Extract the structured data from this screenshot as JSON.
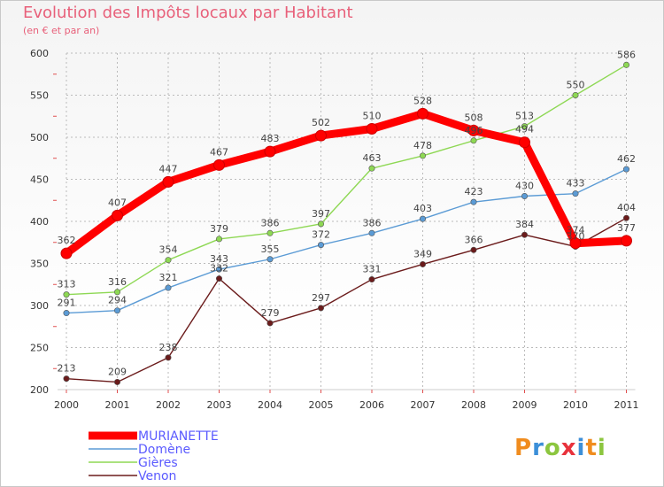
{
  "chart_data": {
    "type": "line",
    "title": "Evolution des Impôts locaux par Habitant",
    "subtitle": "(en € et par an)",
    "categories": [
      "2000",
      "2001",
      "2002",
      "2003",
      "2004",
      "2005",
      "2006",
      "2007",
      "2008",
      "2009",
      "2010",
      "2011"
    ],
    "yticks": [
      "200",
      "250",
      "300",
      "350",
      "400",
      "450",
      "500",
      "550",
      "600"
    ],
    "ylim": [
      200,
      600
    ],
    "series": [
      {
        "name": "MURIANETTE",
        "color": "#ff0000",
        "values": [
          362,
          407,
          447,
          467,
          483,
          502,
          510,
          528,
          508,
          494,
          374,
          377
        ],
        "labels": [
          "362",
          "407",
          "447",
          "467",
          "483",
          "502",
          "510",
          "528",
          "508",
          "494",
          "374",
          "377"
        ]
      },
      {
        "name": "Domène",
        "color": "#5b9bd5",
        "values": [
          291,
          294,
          321,
          343,
          355,
          372,
          386,
          403,
          423,
          430,
          433,
          462
        ],
        "labels": [
          "291",
          "294",
          "321",
          "343",
          "355",
          "372",
          "386",
          "403",
          "423",
          "430",
          "433",
          "462"
        ]
      },
      {
        "name": "Gières",
        "color": "#8ed854",
        "values": [
          313,
          316,
          354,
          379,
          386,
          397,
          463,
          478,
          496,
          513,
          550,
          586
        ],
        "labels": [
          "313",
          "316",
          "354",
          "379",
          "386",
          "397",
          "463",
          "478",
          "496",
          "513",
          "550",
          "586"
        ]
      },
      {
        "name": "Venon",
        "color": "#6b1b1b",
        "values": [
          213,
          209,
          238,
          332,
          279,
          297,
          331,
          349,
          366,
          384,
          370,
          404
        ],
        "labels": [
          "213",
          "209",
          "238",
          "332",
          "279",
          "297",
          "331",
          "349",
          "366",
          "384",
          "370",
          "404"
        ]
      }
    ]
  },
  "brand": {
    "letters": [
      "P",
      "r",
      "o",
      "x",
      "i",
      "t",
      "i"
    ],
    "colors": [
      "#f08c1e",
      "#3c8fd8",
      "#8cc63f",
      "#e8323c",
      "#3c8fd8",
      "#f08c1e",
      "#8cc63f"
    ]
  }
}
